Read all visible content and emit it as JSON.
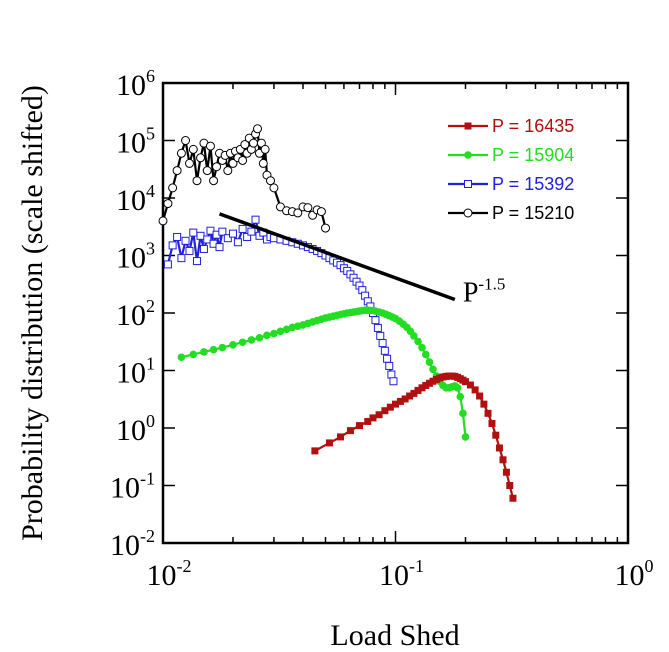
{
  "chart_data": {
    "type": "line",
    "xlabel": "Load Shed",
    "ylabel": "Probability distribution (scale shifted)",
    "xscale": "log",
    "yscale": "log",
    "xlim": [
      0.01,
      1
    ],
    "ylim": [
      0.01,
      1000000
    ],
    "grid": false,
    "legend_position": "top-right",
    "x_ticks": [
      {
        "base": "10",
        "exp": "-2",
        "value": 0.01
      },
      {
        "base": "10",
        "exp": "-1",
        "value": 0.1
      },
      {
        "base": "10",
        "exp": "0",
        "value": 1
      }
    ],
    "y_ticks": [
      {
        "base": "10",
        "exp": "-2",
        "value": 0.01
      },
      {
        "base": "10",
        "exp": "-1",
        "value": 0.1
      },
      {
        "base": "10",
        "exp": "0",
        "value": 1
      },
      {
        "base": "10",
        "exp": "1",
        "value": 10
      },
      {
        "base": "10",
        "exp": "2",
        "value": 100
      },
      {
        "base": "10",
        "exp": "3",
        "value": 1000
      },
      {
        "base": "10",
        "exp": "4",
        "value": 10000
      },
      {
        "base": "10",
        "exp": "5",
        "value": 100000
      },
      {
        "base": "10",
        "exp": "6",
        "value": 1000000
      }
    ],
    "annotation": {
      "base": "P",
      "exp": "-1.5",
      "line": {
        "x": [
          0.0175,
          0.18
        ],
        "y": [
          5300,
          172
        ]
      }
    },
    "series": [
      {
        "name": "P = 16435",
        "color": "#b01010",
        "marker": "filled-square",
        "x": [
          0.045,
          0.052,
          0.058,
          0.064,
          0.07,
          0.076,
          0.08,
          0.085,
          0.09,
          0.095,
          0.1,
          0.105,
          0.11,
          0.115,
          0.12,
          0.125,
          0.13,
          0.135,
          0.14,
          0.145,
          0.15,
          0.155,
          0.16,
          0.165,
          0.17,
          0.175,
          0.18,
          0.185,
          0.19,
          0.195,
          0.2,
          0.21,
          0.22,
          0.23,
          0.24,
          0.25,
          0.26,
          0.27,
          0.28,
          0.29,
          0.3,
          0.31,
          0.32
        ],
        "y": [
          0.4,
          0.55,
          0.7,
          0.9,
          1.1,
          1.3,
          1.5,
          1.7,
          2.0,
          2.3,
          2.6,
          2.9,
          3.2,
          3.6,
          4.0,
          4.5,
          5.0,
          5.5,
          6.0,
          6.5,
          7.0,
          7.4,
          7.7,
          7.9,
          8.0,
          8.0,
          7.9,
          7.6,
          7.2,
          6.8,
          6.4,
          5.6,
          4.6,
          3.6,
          2.6,
          1.8,
          1.2,
          0.75,
          0.45,
          0.28,
          0.17,
          0.1,
          0.06
        ]
      },
      {
        "name": "P = 15904",
        "color": "#22dd22",
        "marker": "filled-circle",
        "x": [
          0.012,
          0.0135,
          0.015,
          0.0165,
          0.018,
          0.02,
          0.022,
          0.024,
          0.026,
          0.028,
          0.03,
          0.032,
          0.034,
          0.036,
          0.038,
          0.04,
          0.042,
          0.044,
          0.046,
          0.048,
          0.05,
          0.052,
          0.054,
          0.056,
          0.058,
          0.06,
          0.062,
          0.064,
          0.066,
          0.068,
          0.07,
          0.072,
          0.074,
          0.076,
          0.078,
          0.08,
          0.082,
          0.085,
          0.088,
          0.091,
          0.094,
          0.097,
          0.1,
          0.104,
          0.108,
          0.112,
          0.116,
          0.12,
          0.125,
          0.13,
          0.135,
          0.14,
          0.145,
          0.15,
          0.155,
          0.16,
          0.165,
          0.17,
          0.175,
          0.18,
          0.185,
          0.19,
          0.195,
          0.2
        ],
        "y": [
          17,
          19,
          21,
          23,
          25,
          28,
          31,
          34,
          37,
          41,
          44,
          48,
          52,
          56,
          59,
          62,
          66,
          70,
          74,
          78,
          82,
          85,
          88,
          91,
          94,
          97,
          100,
          102,
          104,
          106,
          108,
          110,
          112,
          112,
          111,
          110,
          108,
          104,
          100,
          95,
          90,
          85,
          80,
          72,
          64,
          56,
          48,
          40,
          32,
          25,
          19,
          14,
          10.5,
          8,
          6.5,
          5.5,
          5.0,
          5.0,
          5.2,
          5.4,
          5.0,
          3.5,
          1.8,
          0.7
        ]
      },
      {
        "name": "P = 15392",
        "color": "#2020dd",
        "marker": "open-square",
        "x": [
          0.0105,
          0.011,
          0.0115,
          0.012,
          0.0125,
          0.013,
          0.0135,
          0.014,
          0.0145,
          0.015,
          0.0155,
          0.016,
          0.0165,
          0.017,
          0.0175,
          0.018,
          0.019,
          0.02,
          0.021,
          0.022,
          0.023,
          0.024,
          0.025,
          0.026,
          0.027,
          0.028,
          0.029,
          0.03,
          0.032,
          0.034,
          0.036,
          0.038,
          0.04,
          0.042,
          0.044,
          0.046,
          0.048,
          0.05,
          0.052,
          0.054,
          0.056,
          0.058,
          0.06,
          0.062,
          0.064,
          0.066,
          0.068,
          0.07,
          0.072,
          0.074,
          0.076,
          0.078,
          0.08,
          0.082,
          0.084,
          0.086,
          0.088,
          0.09,
          0.092,
          0.094,
          0.096,
          0.098
        ],
        "y": [
          700,
          1500,
          2100,
          900,
          1800,
          1200,
          2500,
          800,
          2200,
          1300,
          1900,
          2700,
          1600,
          2300,
          1400,
          2600,
          2000,
          2400,
          1700,
          2900,
          2100,
          2600,
          4200,
          2200,
          2500,
          1900,
          2100,
          2000,
          1900,
          1800,
          1700,
          1600,
          1500,
          1400,
          1300,
          1200,
          1100,
          1000,
          900,
          820,
          750,
          680,
          600,
          540,
          470,
          410,
          350,
          300,
          250,
          200,
          160,
          130,
          100,
          75,
          55,
          40,
          30,
          22,
          16,
          12,
          8.5,
          6.5
        ]
      },
      {
        "name": "P = 15210",
        "color": "#000000",
        "marker": "open-circle",
        "x": [
          0.01,
          0.0105,
          0.011,
          0.0115,
          0.012,
          0.0125,
          0.013,
          0.0135,
          0.014,
          0.0145,
          0.015,
          0.0155,
          0.016,
          0.0165,
          0.017,
          0.0175,
          0.018,
          0.0185,
          0.019,
          0.0195,
          0.02,
          0.0205,
          0.021,
          0.0215,
          0.022,
          0.0225,
          0.023,
          0.0235,
          0.024,
          0.0245,
          0.025,
          0.0255,
          0.026,
          0.0265,
          0.027,
          0.0275,
          0.028,
          0.029,
          0.03,
          0.032,
          0.034,
          0.036,
          0.038,
          0.04,
          0.042,
          0.044,
          0.046,
          0.048,
          0.05
        ],
        "y": [
          4000,
          8000,
          15000,
          30000,
          60000,
          100000,
          40000,
          70000,
          20000,
          50000,
          90000,
          30000,
          80000,
          20000,
          35000,
          60000,
          45000,
          55000,
          30000,
          60000,
          40000,
          65000,
          50000,
          70000,
          45000,
          85000,
          60000,
          110000,
          70000,
          90000,
          130000,
          160000,
          60000,
          90000,
          40000,
          70000,
          25000,
          20000,
          15000,
          7000,
          6000,
          5800,
          5500,
          7000,
          6800,
          5000,
          6200,
          5800,
          3000
        ]
      }
    ]
  }
}
